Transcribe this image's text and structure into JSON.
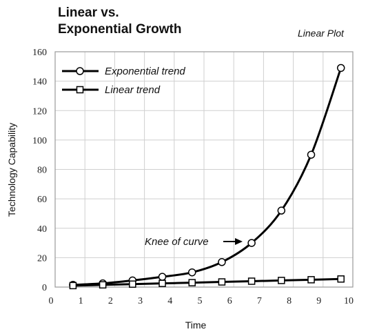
{
  "chart_data": {
    "type": "line",
    "title_line1": "Linear vs.",
    "title_line2": "Exponential Growth",
    "subtitle": "Linear Plot",
    "xlabel": "Time",
    "ylabel": "Technology Capability",
    "xlim": [
      0,
      10
    ],
    "ylim": [
      0,
      160
    ],
    "x_ticks": [
      0,
      1,
      2,
      3,
      4,
      5,
      6,
      7,
      8,
      9,
      10
    ],
    "y_ticks": [
      0,
      20,
      40,
      60,
      80,
      100,
      120,
      140,
      160
    ],
    "grid": true,
    "legend_position": "top-left",
    "series": [
      {
        "name": "Exponential trend",
        "marker": "circle",
        "x": [
          0.6,
          1.6,
          2.6,
          3.6,
          4.6,
          5.6,
          6.6,
          7.6,
          8.6,
          9.6
        ],
        "values": [
          1.5,
          2.5,
          4.5,
          7,
          10,
          17,
          30,
          52,
          90,
          149
        ]
      },
      {
        "name": "Linear trend",
        "marker": "square",
        "x": [
          0.6,
          1.6,
          2.6,
          3.6,
          4.6,
          5.6,
          6.6,
          7.6,
          8.6,
          9.6
        ],
        "values": [
          1,
          1.5,
          2,
          2.5,
          3,
          3.5,
          4,
          4.5,
          5,
          5.5
        ]
      }
    ],
    "annotations": [
      {
        "text": "Knee of curve",
        "x": 6.6,
        "y": 30
      }
    ]
  }
}
